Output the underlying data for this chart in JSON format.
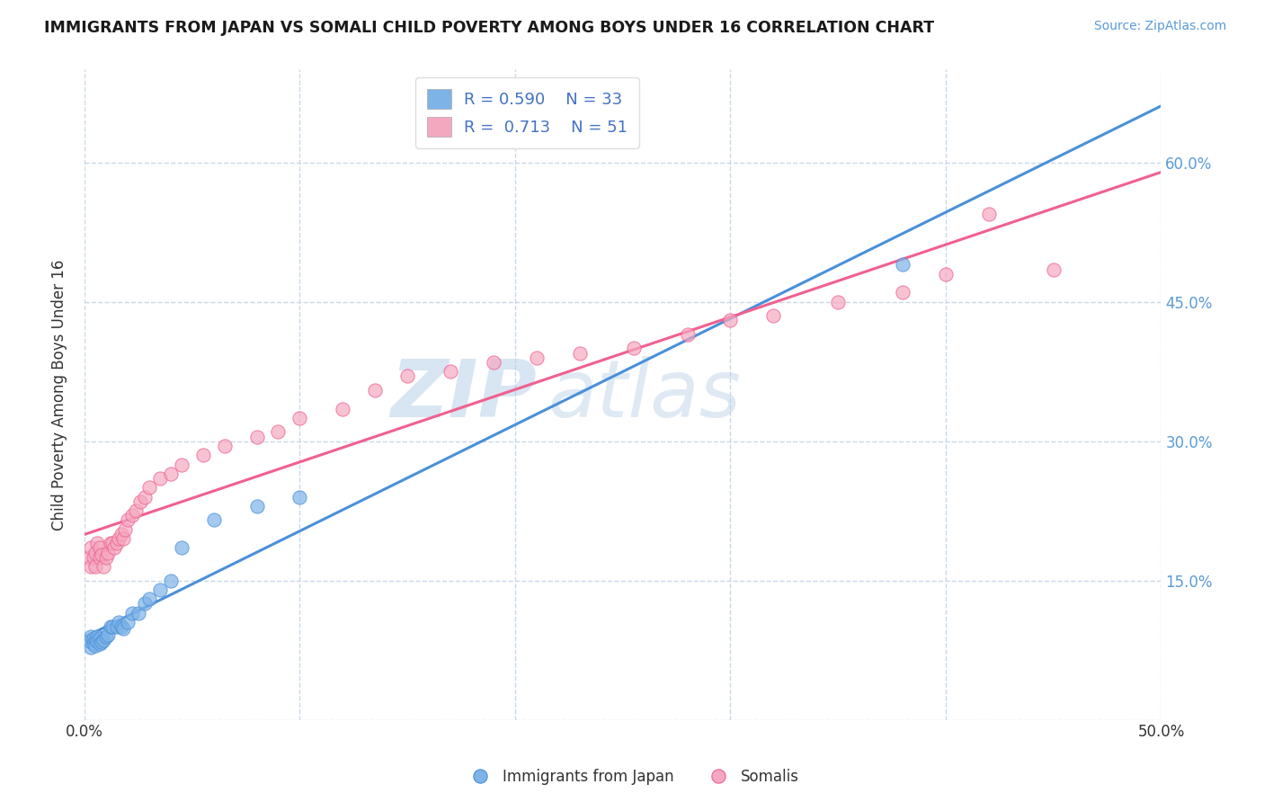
{
  "title": "IMMIGRANTS FROM JAPAN VS SOMALI CHILD POVERTY AMONG BOYS UNDER 16 CORRELATION CHART",
  "source": "Source: ZipAtlas.com",
  "ylabel": "Child Poverty Among Boys Under 16",
  "xlim": [
    0.0,
    0.5
  ],
  "ylim": [
    0.0,
    0.7
  ],
  "xticks": [
    0.0,
    0.1,
    0.2,
    0.3,
    0.4,
    0.5
  ],
  "xticklabels": [
    "0.0%",
    "",
    "",
    "",
    "",
    "50.0%"
  ],
  "yticks": [
    0.0,
    0.15,
    0.3,
    0.45,
    0.6
  ],
  "yticklabels": [
    "",
    "15.0%",
    "30.0%",
    "45.0%",
    "60.0%"
  ],
  "japan_R": "0.590",
  "japan_N": "33",
  "somali_R": "0.713",
  "somali_N": "51",
  "japan_color": "#7EB3E8",
  "somali_color": "#F4A8C0",
  "japan_line_color": "#4A90D9",
  "somali_line_color": "#F06090",
  "background_color": "#ffffff",
  "grid_color": "#C8D8E8",
  "watermark_zip": "ZIP",
  "watermark_atlas": "atlas",
  "japan_x": [
    0.002,
    0.003,
    0.003,
    0.004,
    0.004,
    0.005,
    0.005,
    0.006,
    0.006,
    0.007,
    0.007,
    0.008,
    0.009,
    0.01,
    0.011,
    0.012,
    0.013,
    0.015,
    0.016,
    0.017,
    0.018,
    0.02,
    0.022,
    0.025,
    0.028,
    0.03,
    0.035,
    0.04,
    0.045,
    0.06,
    0.08,
    0.1,
    0.38
  ],
  "japan_y": [
    0.085,
    0.078,
    0.09,
    0.088,
    0.082,
    0.086,
    0.08,
    0.09,
    0.085,
    0.088,
    0.082,
    0.084,
    0.086,
    0.09,
    0.092,
    0.1,
    0.1,
    0.1,
    0.105,
    0.1,
    0.098,
    0.105,
    0.115,
    0.115,
    0.125,
    0.13,
    0.14,
    0.15,
    0.185,
    0.215,
    0.23,
    0.24,
    0.49
  ],
  "somali_x": [
    0.002,
    0.003,
    0.003,
    0.004,
    0.005,
    0.005,
    0.006,
    0.007,
    0.007,
    0.008,
    0.009,
    0.01,
    0.011,
    0.012,
    0.013,
    0.014,
    0.015,
    0.016,
    0.017,
    0.018,
    0.019,
    0.02,
    0.022,
    0.024,
    0.026,
    0.028,
    0.03,
    0.035,
    0.04,
    0.045,
    0.055,
    0.065,
    0.08,
    0.09,
    0.1,
    0.12,
    0.135,
    0.15,
    0.17,
    0.19,
    0.21,
    0.23,
    0.255,
    0.28,
    0.3,
    0.32,
    0.35,
    0.38,
    0.4,
    0.42,
    0.45
  ],
  "somali_y": [
    0.175,
    0.165,
    0.185,
    0.175,
    0.165,
    0.18,
    0.19,
    0.175,
    0.185,
    0.178,
    0.165,
    0.175,
    0.18,
    0.19,
    0.19,
    0.185,
    0.19,
    0.195,
    0.2,
    0.195,
    0.205,
    0.215,
    0.22,
    0.225,
    0.235,
    0.24,
    0.25,
    0.26,
    0.265,
    0.275,
    0.285,
    0.295,
    0.305,
    0.31,
    0.325,
    0.335,
    0.355,
    0.37,
    0.375,
    0.385,
    0.39,
    0.395,
    0.4,
    0.415,
    0.43,
    0.435,
    0.45,
    0.46,
    0.48,
    0.545,
    0.485
  ]
}
